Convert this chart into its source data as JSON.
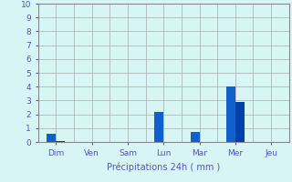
{
  "days": [
    "Dim",
    "Ven",
    "Sam",
    "Lun",
    "Mar",
    "Mer",
    "Jeu"
  ],
  "bar1_values": [
    0.6,
    0.0,
    0.0,
    2.2,
    0.7,
    4.0,
    0.0
  ],
  "bar2_values": [
    0.05,
    0.0,
    0.0,
    0.0,
    0.0,
    2.9,
    0.0
  ],
  "bar_color1": "#1060cc",
  "bar_color2": "#0040aa",
  "background_color": "#d8f5f5",
  "grid_color": "#aaaaaa",
  "axis_color": "#888888",
  "text_color": "#5555bb",
  "xlabel": "Précipitations 24h ( mm )",
  "ylim": [
    0,
    10
  ],
  "yticks": [
    0,
    1,
    2,
    3,
    4,
    5,
    6,
    7,
    8,
    9,
    10
  ],
  "bar_width": 0.25,
  "figsize": [
    3.2,
    2.0
  ],
  "dpi": 100
}
